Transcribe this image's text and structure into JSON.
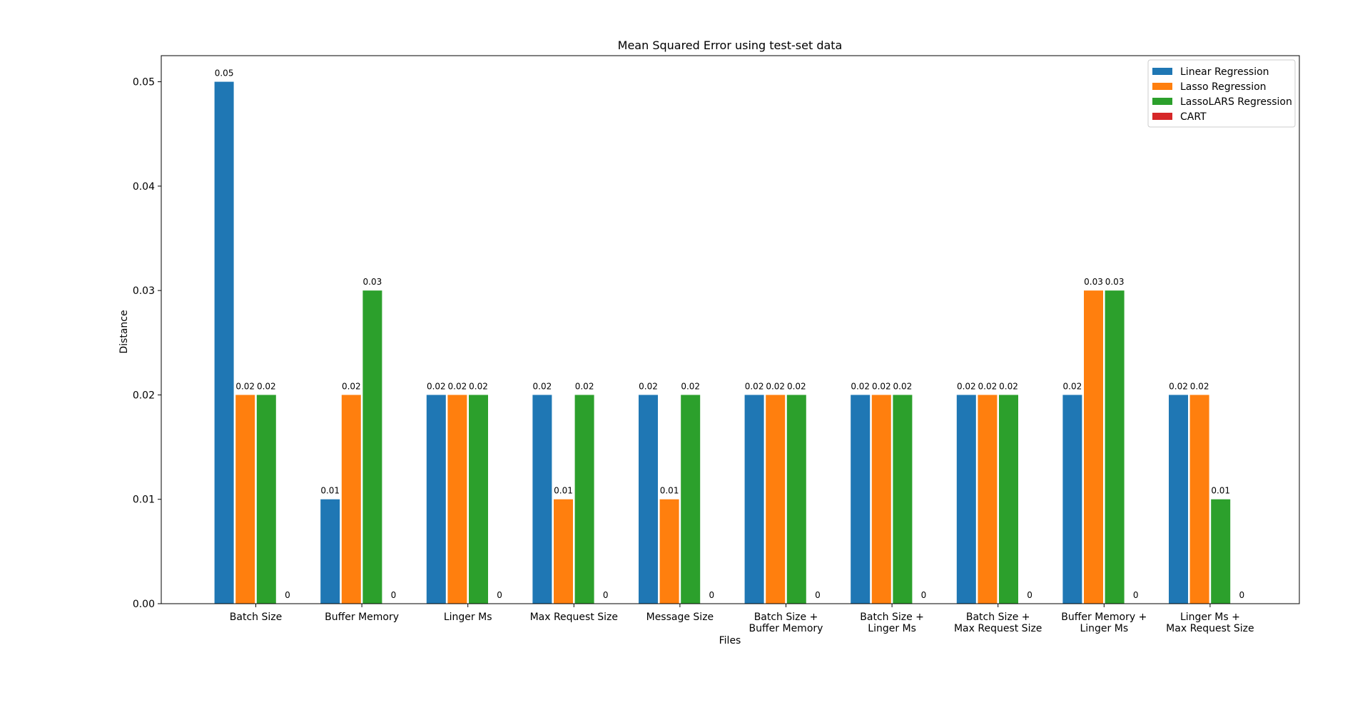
{
  "chart_data": {
    "type": "bar",
    "title": "Mean Squared Error using test-set data",
    "xlabel": "Files",
    "ylabel": "Distance",
    "ylim": [
      0,
      0.0525
    ],
    "yticks": [
      "0.00",
      "0.01",
      "0.02",
      "0.03",
      "0.04",
      "0.05"
    ],
    "categories": [
      [
        "Batch Size"
      ],
      [
        "Buffer Memory"
      ],
      [
        "Linger Ms"
      ],
      [
        "Max Request Size"
      ],
      [
        "Message Size"
      ],
      [
        "Batch Size +",
        "Buffer Memory"
      ],
      [
        "Batch Size +",
        "Linger Ms"
      ],
      [
        "Batch Size +",
        "Max Request Size"
      ],
      [
        "Buffer Memory +",
        "Linger Ms"
      ],
      [
        "Linger Ms +",
        "Max Request Size"
      ]
    ],
    "series": [
      {
        "name": "Linear Regression",
        "color": "#1f77b4",
        "values": [
          0.05,
          0.01,
          0.02,
          0.02,
          0.02,
          0.02,
          0.02,
          0.02,
          0.02,
          0.02
        ],
        "labels": [
          "0.05",
          "0.01",
          "0.02",
          "0.02",
          "0.02",
          "0.02",
          "0.02",
          "0.02",
          "0.02",
          "0.02"
        ]
      },
      {
        "name": "Lasso Regression",
        "color": "#ff7f0e",
        "values": [
          0.02,
          0.02,
          0.02,
          0.01,
          0.01,
          0.02,
          0.02,
          0.02,
          0.03,
          0.02
        ],
        "labels": [
          "0.02",
          "0.02",
          "0.02",
          "0.01",
          "0.01",
          "0.02",
          "0.02",
          "0.02",
          "0.03",
          "0.02"
        ]
      },
      {
        "name": "LassoLARS Regression",
        "color": "#2ca02c",
        "values": [
          0.02,
          0.03,
          0.02,
          0.02,
          0.02,
          0.02,
          0.02,
          0.02,
          0.03,
          0.01
        ],
        "labels": [
          "0.02",
          "0.03",
          "0.02",
          "0.02",
          "0.02",
          "0.02",
          "0.02",
          "0.02",
          "0.03",
          "0.01"
        ]
      },
      {
        "name": "CART",
        "color": "#d62728",
        "values": [
          0,
          0,
          0,
          0,
          0,
          0,
          0,
          0,
          0,
          0
        ],
        "labels": [
          "0",
          "0",
          "0",
          "0",
          "0",
          "0",
          "0",
          "0",
          "0",
          "0"
        ]
      }
    ],
    "legend_position": "top-right",
    "grid": false
  }
}
